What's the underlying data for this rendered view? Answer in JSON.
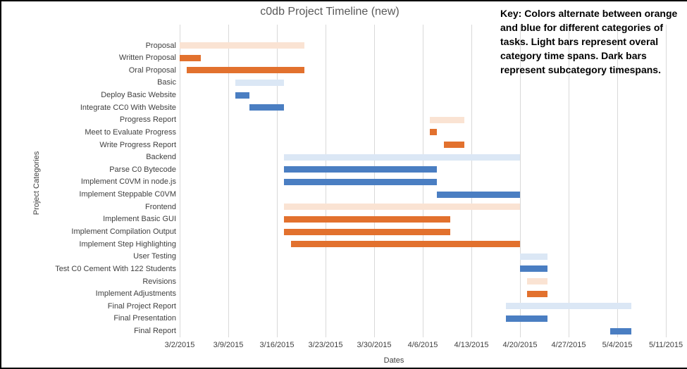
{
  "title": "c0db Project Timeline (new)",
  "key": {
    "lines": [
      "Key: Colors alternate between orange",
      "and blue for different categories of",
      "tasks. Light bars represent overal",
      "category time spans. Dark bars",
      "represent subcategory timespans."
    ]
  },
  "axes": {
    "x_title": "Dates",
    "y_title": "Project Categories",
    "x_ticks": [
      "3/2/2015",
      "3/9/2015",
      "3/16/2015",
      "3/23/2015",
      "3/30/2015",
      "4/6/2015",
      "4/13/2015",
      "4/20/2015",
      "4/27/2015",
      "5/4/2015",
      "5/11/2015"
    ]
  },
  "chart_data": {
    "type": "bar",
    "subtype": "gantt",
    "title": "c0db Project Timeline (new)",
    "xlabel": "Dates",
    "ylabel": "Project Categories",
    "x_tick_labels": [
      "3/2/2015",
      "3/9/2015",
      "3/16/2015",
      "3/23/2015",
      "3/30/2015",
      "4/6/2015",
      "4/13/2015",
      "4/20/2015",
      "4/27/2015",
      "5/4/2015",
      "5/11/2015"
    ],
    "x_range": [
      "3/2/2015",
      "5/11/2015"
    ],
    "date_origin": "3/2/2015",
    "grid": "vertical-weekly",
    "legend_note": "Key: Colors alternate between orange and blue for different categories of tasks. Light bars represent overal category time spans. Dark bars represent subcategory timespans.",
    "colors": {
      "light-orange": "#FAE3D3",
      "dark-orange": "#E2712E",
      "light-blue": "#DBE7F5",
      "dark-blue": "#4A7EC2"
    },
    "tasks": [
      {
        "label": "Proposal",
        "start": "3/2/2015",
        "end": "3/20/2015",
        "start_day": 0,
        "end_day": 18,
        "color": "light-orange"
      },
      {
        "label": "Written Proposal",
        "start": "3/2/2015",
        "end": "3/5/2015",
        "start_day": 0,
        "end_day": 3,
        "color": "dark-orange"
      },
      {
        "label": "Oral Proposal",
        "start": "3/3/2015",
        "end": "3/20/2015",
        "start_day": 1,
        "end_day": 18,
        "color": "dark-orange"
      },
      {
        "label": "Basic",
        "start": "3/10/2015",
        "end": "3/17/2015",
        "start_day": 8,
        "end_day": 15,
        "color": "light-blue"
      },
      {
        "label": "Deploy Basic Website",
        "start": "3/10/2015",
        "end": "3/12/2015",
        "start_day": 8,
        "end_day": 10,
        "color": "dark-blue"
      },
      {
        "label": "Integrate CC0 With Website",
        "start": "3/12/2015",
        "end": "3/17/2015",
        "start_day": 10,
        "end_day": 15,
        "color": "dark-blue"
      },
      {
        "label": "Progress Report",
        "start": "4/7/2015",
        "end": "4/12/2015",
        "start_day": 36,
        "end_day": 41,
        "color": "light-orange"
      },
      {
        "label": "Meet to Evaluate Progress",
        "start": "4/7/2015",
        "end": "4/8/2015",
        "start_day": 36,
        "end_day": 37,
        "color": "dark-orange"
      },
      {
        "label": "Write Progress Report",
        "start": "4/9/2015",
        "end": "4/12/2015",
        "start_day": 38,
        "end_day": 41,
        "color": "dark-orange"
      },
      {
        "label": "Backend",
        "start": "3/17/2015",
        "end": "4/20/2015",
        "start_day": 15,
        "end_day": 49,
        "color": "light-blue"
      },
      {
        "label": "Parse C0 Bytecode",
        "start": "3/17/2015",
        "end": "4/8/2015",
        "start_day": 15,
        "end_day": 37,
        "color": "dark-blue"
      },
      {
        "label": "Implement C0VM in node.js",
        "start": "3/17/2015",
        "end": "4/8/2015",
        "start_day": 15,
        "end_day": 37,
        "color": "dark-blue"
      },
      {
        "label": "Implement Steppable C0VM",
        "start": "4/8/2015",
        "end": "4/20/2015",
        "start_day": 37,
        "end_day": 49,
        "color": "dark-blue"
      },
      {
        "label": "Frontend",
        "start": "3/17/2015",
        "end": "4/20/2015",
        "start_day": 15,
        "end_day": 49,
        "color": "light-orange"
      },
      {
        "label": "Implement Basic GUI",
        "start": "3/17/2015",
        "end": "4/10/2015",
        "start_day": 15,
        "end_day": 39,
        "color": "dark-orange"
      },
      {
        "label": "Implement Compilation Output",
        "start": "3/17/2015",
        "end": "4/10/2015",
        "start_day": 15,
        "end_day": 39,
        "color": "dark-orange"
      },
      {
        "label": "Implement Step Highlighting",
        "start": "3/18/2015",
        "end": "4/20/2015",
        "start_day": 16,
        "end_day": 49,
        "color": "dark-orange"
      },
      {
        "label": "User Testing",
        "start": "4/20/2015",
        "end": "4/24/2015",
        "start_day": 49,
        "end_day": 53,
        "color": "light-blue"
      },
      {
        "label": "Test C0 Cement With 122 Students",
        "start": "4/20/2015",
        "end": "4/24/2015",
        "start_day": 49,
        "end_day": 53,
        "color": "dark-blue"
      },
      {
        "label": "Revisions",
        "start": "4/21/2015",
        "end": "4/24/2015",
        "start_day": 50,
        "end_day": 53,
        "color": "light-orange"
      },
      {
        "label": "Implement Adjustments",
        "start": "4/21/2015",
        "end": "4/24/2015",
        "start_day": 50,
        "end_day": 53,
        "color": "dark-orange"
      },
      {
        "label": "Final Project Report",
        "start": "4/18/2015",
        "end": "5/6/2015",
        "start_day": 47,
        "end_day": 65,
        "color": "light-blue"
      },
      {
        "label": "Final Presentation",
        "start": "4/18/2015",
        "end": "4/24/2015",
        "start_day": 47,
        "end_day": 53,
        "color": "dark-blue"
      },
      {
        "label": "Final Report",
        "start": "5/3/2015",
        "end": "5/6/2015",
        "start_day": 62,
        "end_day": 65,
        "color": "dark-blue"
      }
    ]
  }
}
